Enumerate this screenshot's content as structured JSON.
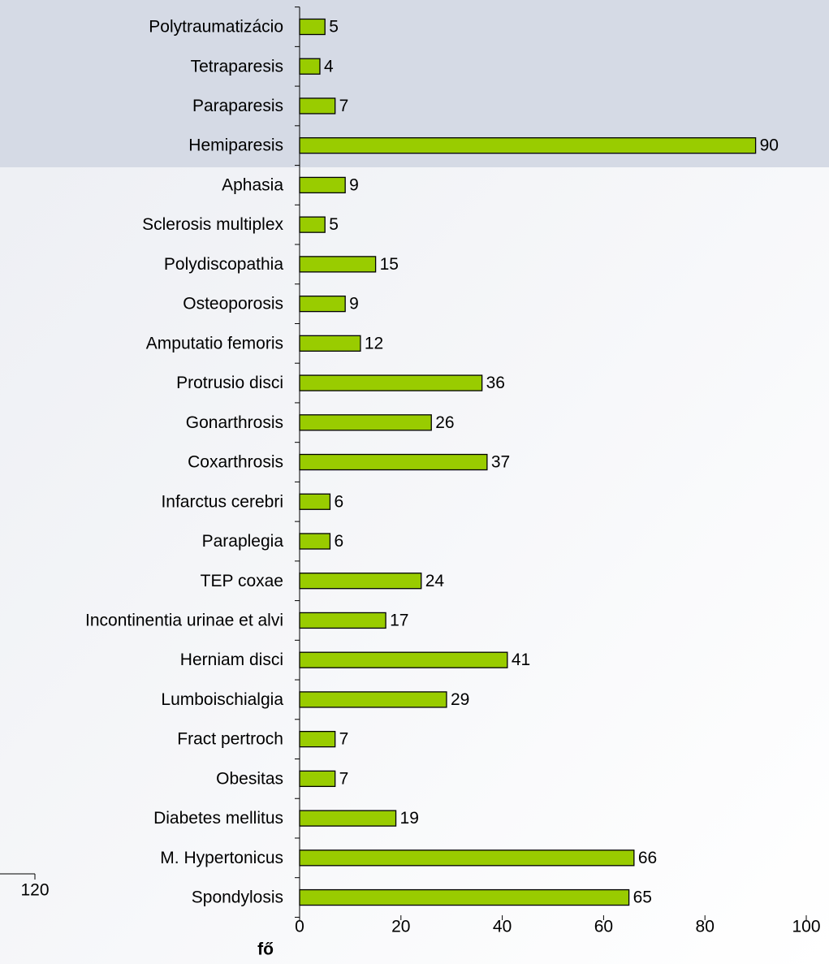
{
  "chart_data": {
    "type": "hbar",
    "categories": [
      "Polytraumatizácio",
      "Tetraparesis",
      "Paraparesis",
      "Hemiparesis",
      "Aphasia",
      "Sclerosis multiplex",
      "Polydiscopathia",
      "Osteoporosis",
      "Amputatio femoris",
      "Protrusio disci",
      "Gonarthrosis",
      "Coxarthrosis",
      "Infarctus cerebri",
      "Paraplegia",
      "TEP coxae",
      "Incontinentia urinae et alvi",
      "Herniam disci",
      "Lumboischialgia",
      "Fract pertroch",
      "Obesitas",
      "Diabetes mellitus",
      "M. Hypertonicus",
      "Spondylosis"
    ],
    "values": [
      5,
      4,
      7,
      90,
      9,
      5,
      15,
      9,
      12,
      36,
      26,
      37,
      6,
      6,
      24,
      17,
      41,
      29,
      7,
      7,
      19,
      66,
      65
    ],
    "color": "#99cc00",
    "xlabel": "fő",
    "xlim": [
      0,
      100
    ],
    "xticks": [
      0,
      20,
      40,
      60,
      80,
      100
    ],
    "stray_tick_label": 120
  }
}
